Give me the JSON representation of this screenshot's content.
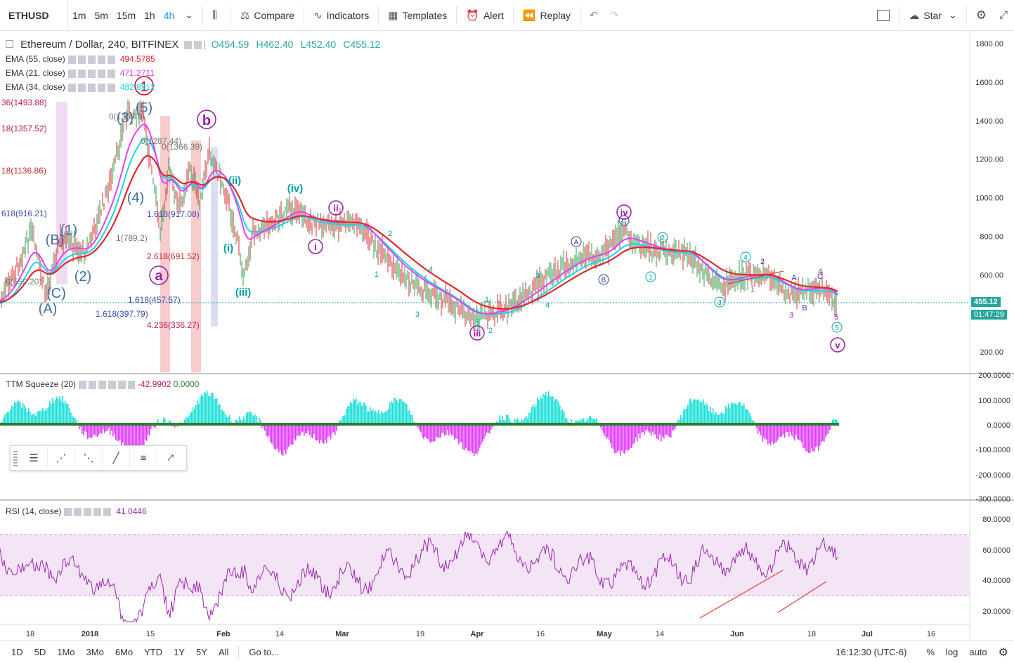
{
  "toolbar": {
    "symbol": "ETHUSD",
    "intervals": [
      "1m",
      "5m",
      "15m",
      "1h",
      "4h"
    ],
    "active_interval": "4h",
    "compare": "Compare",
    "indicators": "Indicators",
    "templates": "Templates",
    "alert": "Alert",
    "replay": "Replay",
    "star": "Star"
  },
  "main_legend": {
    "title": "Ethereum / Dollar, 240, BITFINEX",
    "o": "O454.59",
    "h": "H462.40",
    "l": "L452.40",
    "c": "C455.12",
    "ema55_label": "EMA (55, close)",
    "ema55_value": "494.5785",
    "ema21_label": "EMA (21, close)",
    "ema21_value": "471.2711",
    "ema34_label": "EMA (34, close)",
    "ema34_value": "482.8912"
  },
  "price_axis": [
    "1800.00",
    "1600.00",
    "1400.00",
    "1200.00",
    "1000.00",
    "800.00",
    "600.00",
    "400.00",
    "200.00"
  ],
  "last_price": "455.12",
  "countdown": "01:47:29",
  "ttm": {
    "label": "TTM Squeeze (20)",
    "value1": "-42.9902",
    "value2": "0.0000",
    "axis": [
      "200.0000",
      "100.0000",
      "0.0000",
      "-100.0000",
      "-200.0000",
      "-300.0000"
    ]
  },
  "rsi": {
    "label": "RSI (14, close)",
    "value": "41.0446",
    "axis": [
      "80.0000",
      "60.0000",
      "40.0000",
      "20.0000"
    ]
  },
  "time_axis": [
    "18",
    "2018",
    "15",
    "Feb",
    "14",
    "Mar",
    "19",
    "Apr",
    "16",
    "May",
    "14",
    "Jun",
    "18",
    "Jul",
    "16"
  ],
  "bottom": {
    "ranges": [
      "1D",
      "5D",
      "1Mo",
      "3Mo",
      "6Mo",
      "YTD",
      "1Y",
      "5Y",
      "All"
    ],
    "goto": "Go to...",
    "clock": "16:12:30 (UTC-6)",
    "pct": "%",
    "log": "log",
    "auto": "auto"
  },
  "annotations": {
    "wave_labels": [
      "(3)",
      "(5)",
      "(4)",
      "(1)",
      "(2)",
      "(A)",
      "(B)",
      "(C)",
      "(iv)",
      "(iii)",
      "(i)",
      "(ii)",
      "a",
      "b",
      "iv",
      "v",
      "iii",
      "ii",
      "i",
      "1",
      "2",
      "3",
      "4",
      "5",
      "A",
      "B",
      "C"
    ],
    "fib_labels": [
      "36(1493.88)",
      "18(1357.52)",
      "18(1136.86)",
      "618(916.21)",
      "1.618(917.08)",
      "2.618(691.52)",
      "1.618(457.57)",
      "1.618(397.79)",
      "4.236(336.27)",
      "1(789.2)",
      "0(1366.39)",
      "0(1287.44)",
      "0(1387.8)",
      "0(559.20)"
    ]
  },
  "colors": {
    "ema_red": "#e5262b",
    "ema_magenta": "#e040fb",
    "ema_cyan": "#18d5e3",
    "candle_green": "#2e9e4f",
    "candle_red": "#d32f2f",
    "squeeze_cyan": "#1de0d8",
    "squeeze_magenta": "#e040fb",
    "rsi_line": "#9c27b0",
    "rsi_band": "#f3e5f5",
    "last_price_bg": "#26a69a",
    "wave_purple": "#9c1aa6",
    "wave_teal": "#00a3a3",
    "wave_blue": "#2b3a9c",
    "wave_red": "#d0021b"
  }
}
